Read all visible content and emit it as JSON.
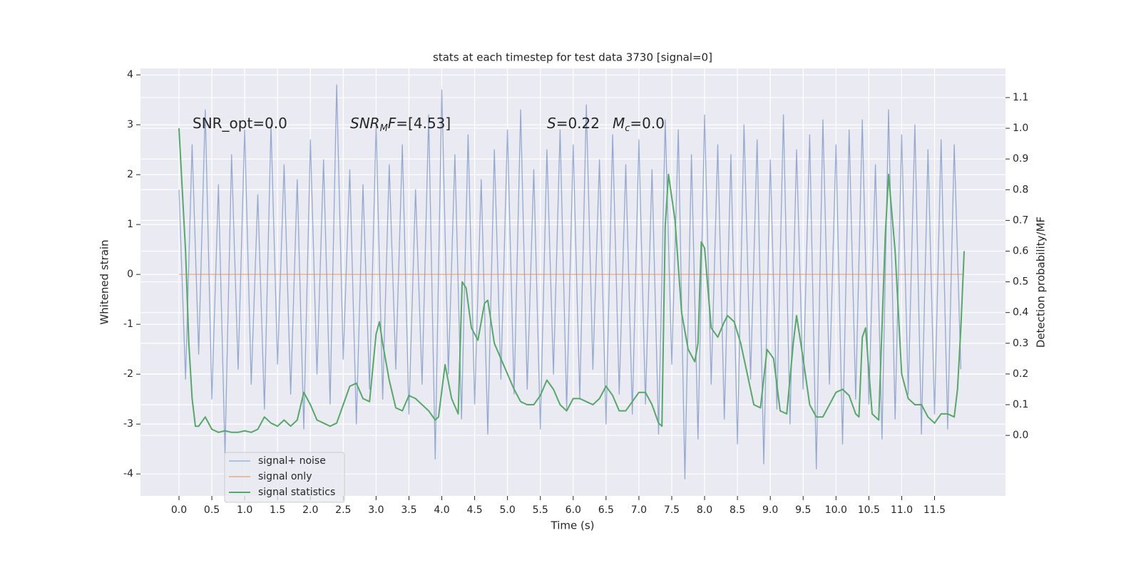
{
  "chart_data": {
    "type": "line",
    "title": "stats at each timestep for test data 3730 [signal=0]",
    "x_label": "Time (s)",
    "y_label": "Whitened strain",
    "y2_label": "Detection probability/MF",
    "grid": true,
    "legend": "lower left",
    "xlim": [
      -0.586,
      12.58
    ],
    "ylim": [
      -4.44,
      4.13
    ],
    "y2lim": [
      -0.197,
      1.195
    ],
    "xticks": [
      {
        "value": 0,
        "label": "0.0"
      },
      0.5,
      {
        "value": 1,
        "label": "1.0"
      },
      1.5,
      {
        "value": 2,
        "label": "2.0"
      },
      2.5,
      {
        "value": 3,
        "label": "3.0"
      },
      3.5,
      {
        "value": 4,
        "label": "4.0"
      },
      4.5,
      {
        "value": 5,
        "label": "5.0"
      },
      5.5,
      {
        "value": 6,
        "label": "6.0"
      },
      6.5,
      {
        "value": 7,
        "label": "7.0"
      },
      7.5,
      {
        "value": 8,
        "label": "8.0"
      },
      8.5,
      {
        "value": 9,
        "label": "9.0"
      },
      9.5,
      {
        "value": 10,
        "label": "10.0"
      },
      10.5,
      {
        "value": 11,
        "label": "11.0"
      },
      11.5
    ],
    "yticks": [
      -4,
      -3,
      -2,
      -1,
      0,
      1,
      2,
      3,
      4
    ],
    "y2ticks": [
      {
        "value": 0,
        "label": "0.0"
      },
      0.1,
      0.2,
      0.3,
      0.4,
      0.5,
      0.6,
      0.7,
      0.8,
      0.9,
      {
        "value": 1,
        "label": "1.0"
      },
      1.1
    ],
    "annotations": [
      {
        "segments": [
          {
            "text": "SNR_opt=0.0",
            "style": "normal"
          }
        ]
      },
      {
        "segments": [
          {
            "text": "SNR",
            "style": "italic"
          },
          {
            "text": "M",
            "style": "italic-sub"
          },
          {
            "text": "F",
            "style": "italic"
          },
          {
            "text": "=[4.53]",
            "style": "normal"
          }
        ]
      },
      {
        "segments": [
          {
            "text": "S",
            "style": "italic"
          },
          {
            "text": "=0.22",
            "style": "normal"
          }
        ]
      },
      {
        "segments": [
          {
            "text": "M",
            "style": "italic"
          },
          {
            "text": "c",
            "style": "italic-sub"
          },
          {
            "text": "=0.0",
            "style": "normal"
          }
        ]
      }
    ],
    "series": [
      {
        "name": "signal+ noise",
        "color": "#4c72b0",
        "axis": "y",
        "x": [
          0.0,
          0.1,
          0.2,
          0.3,
          0.4,
          0.5,
          0.6,
          0.7,
          0.8,
          0.9,
          1.0,
          1.1,
          1.2,
          1.3,
          1.4,
          1.5,
          1.6,
          1.7,
          1.8,
          1.9,
          2.0,
          2.1,
          2.2,
          2.3,
          2.4,
          2.5,
          2.6,
          2.7,
          2.8,
          2.9,
          3.0,
          3.1,
          3.2,
          3.3,
          3.4,
          3.5,
          3.6,
          3.7,
          3.8,
          3.9,
          4.0,
          4.1,
          4.2,
          4.3,
          4.4,
          4.5,
          4.6,
          4.7,
          4.8,
          4.9,
          5.0,
          5.1,
          5.2,
          5.3,
          5.4,
          5.5,
          5.6,
          5.7,
          5.8,
          5.9,
          6.0,
          6.1,
          6.2,
          6.3,
          6.4,
          6.5,
          6.6,
          6.7,
          6.8,
          6.9,
          7.0,
          7.1,
          7.2,
          7.3,
          7.4,
          7.5,
          7.6,
          7.7,
          7.8,
          7.9,
          8.0,
          8.1,
          8.2,
          8.3,
          8.4,
          8.5,
          8.6,
          8.7,
          8.8,
          8.9,
          9.0,
          9.1,
          9.2,
          9.3,
          9.4,
          9.5,
          9.6,
          9.7,
          9.8,
          9.9,
          10.0,
          10.1,
          10.2,
          10.3,
          10.4,
          10.5,
          10.6,
          10.7,
          10.8,
          10.9,
          11.0,
          11.1,
          11.2,
          11.3,
          11.4,
          11.5,
          11.6,
          11.7,
          11.8,
          11.9
        ],
        "values": [
          1.7,
          -2.1,
          2.6,
          -1.6,
          3.3,
          -2.5,
          1.8,
          -3.6,
          2.4,
          -1.9,
          2.9,
          -2.2,
          1.6,
          -2.7,
          3.0,
          -1.8,
          2.2,
          -2.4,
          1.9,
          -3.1,
          2.7,
          -2.0,
          2.3,
          -2.6,
          3.8,
          -1.7,
          2.1,
          -3.0,
          1.8,
          -2.3,
          3.0,
          -2.5,
          2.2,
          -1.9,
          2.6,
          -2.8,
          1.7,
          -2.2,
          3.2,
          -3.7,
          3.7,
          -2.0,
          2.4,
          -2.9,
          2.8,
          -2.6,
          1.9,
          -3.2,
          2.5,
          -2.1,
          2.9,
          -2.4,
          3.3,
          -2.3,
          2.1,
          -3.1,
          2.5,
          -2.0,
          2.9,
          -2.7,
          2.6,
          -2.5,
          3.4,
          -1.9,
          2.3,
          -3.0,
          2.8,
          -2.4,
          2.2,
          -2.8,
          2.7,
          -2.6,
          2.1,
          -3.2,
          3.1,
          -1.8,
          2.9,
          -4.1,
          2.4,
          -3.3,
          3.2,
          -2.2,
          2.6,
          -2.9,
          2.4,
          -3.4,
          3.0,
          -2.1,
          2.7,
          -3.8,
          2.3,
          -2.7,
          3.2,
          -3.0,
          2.5,
          -2.3,
          2.8,
          -3.9,
          3.1,
          -2.2,
          2.6,
          -3.4,
          2.9,
          -2.5,
          3.1,
          -2.6,
          2.2,
          -3.3,
          3.3,
          -2.9,
          2.8,
          -2.4,
          3.0,
          -3.2,
          2.5,
          -2.8,
          2.7,
          -3.1,
          2.6,
          -1.9
        ]
      },
      {
        "name": "signal only",
        "color": "#dd8452",
        "axis": "y",
        "x": [
          0.0,
          11.95
        ],
        "values": [
          0,
          0
        ]
      },
      {
        "name": "signal statistics",
        "color": "#55a868",
        "axis": "y2",
        "x": [
          0.0,
          0.05,
          0.1,
          0.15,
          0.2,
          0.25,
          0.3,
          0.4,
          0.5,
          0.6,
          0.7,
          0.8,
          0.9,
          1.0,
          1.1,
          1.2,
          1.3,
          1.4,
          1.5,
          1.6,
          1.7,
          1.8,
          1.9,
          2.0,
          2.1,
          2.2,
          2.3,
          2.4,
          2.5,
          2.6,
          2.7,
          2.8,
          2.9,
          3.0,
          3.05,
          3.1,
          3.2,
          3.3,
          3.4,
          3.5,
          3.6,
          3.7,
          3.8,
          3.9,
          3.95,
          4.05,
          4.15,
          4.25,
          4.31,
          4.37,
          4.45,
          4.55,
          4.65,
          4.7,
          4.8,
          4.9,
          5.0,
          5.1,
          5.2,
          5.3,
          5.4,
          5.5,
          5.6,
          5.7,
          5.8,
          5.9,
          6.0,
          6.1,
          6.2,
          6.3,
          6.4,
          6.5,
          6.6,
          6.7,
          6.8,
          6.9,
          7.0,
          7.1,
          7.2,
          7.3,
          7.35,
          7.4,
          7.45,
          7.55,
          7.65,
          7.75,
          7.85,
          7.9,
          7.95,
          8.0,
          8.1,
          8.2,
          8.3,
          8.35,
          8.45,
          8.55,
          8.65,
          8.75,
          8.85,
          8.95,
          9.05,
          9.15,
          9.25,
          9.35,
          9.4,
          9.5,
          9.6,
          9.7,
          9.8,
          9.9,
          10.0,
          10.1,
          10.2,
          10.3,
          10.35,
          10.4,
          10.45,
          10.55,
          10.65,
          10.75,
          10.8,
          10.9,
          11.0,
          11.1,
          11.2,
          11.3,
          11.4,
          11.5,
          11.6,
          11.7,
          11.8,
          11.85,
          11.9,
          11.95
        ],
        "values": [
          1.0,
          0.8,
          0.6,
          0.3,
          0.12,
          0.03,
          0.03,
          0.06,
          0.02,
          0.01,
          0.015,
          0.01,
          0.01,
          0.015,
          0.01,
          0.02,
          0.06,
          0.04,
          0.03,
          0.05,
          0.03,
          0.05,
          0.14,
          0.1,
          0.05,
          0.04,
          0.03,
          0.04,
          0.1,
          0.16,
          0.17,
          0.12,
          0.11,
          0.33,
          0.37,
          0.3,
          0.18,
          0.09,
          0.08,
          0.13,
          0.12,
          0.1,
          0.08,
          0.05,
          0.06,
          0.23,
          0.12,
          0.07,
          0.5,
          0.48,
          0.35,
          0.31,
          0.43,
          0.44,
          0.3,
          0.25,
          0.2,
          0.15,
          0.11,
          0.1,
          0.1,
          0.13,
          0.18,
          0.15,
          0.1,
          0.08,
          0.12,
          0.12,
          0.11,
          0.1,
          0.12,
          0.16,
          0.13,
          0.08,
          0.08,
          0.11,
          0.14,
          0.14,
          0.1,
          0.04,
          0.03,
          0.68,
          0.85,
          0.7,
          0.4,
          0.28,
          0.24,
          0.3,
          0.63,
          0.61,
          0.35,
          0.32,
          0.37,
          0.39,
          0.37,
          0.3,
          0.2,
          0.1,
          0.09,
          0.28,
          0.25,
          0.08,
          0.07,
          0.3,
          0.39,
          0.25,
          0.1,
          0.06,
          0.06,
          0.1,
          0.14,
          0.15,
          0.13,
          0.07,
          0.06,
          0.32,
          0.35,
          0.07,
          0.05,
          0.65,
          0.85,
          0.6,
          0.2,
          0.12,
          0.1,
          0.1,
          0.06,
          0.04,
          0.07,
          0.07,
          0.06,
          0.15,
          0.35,
          0.6
        ]
      }
    ]
  }
}
